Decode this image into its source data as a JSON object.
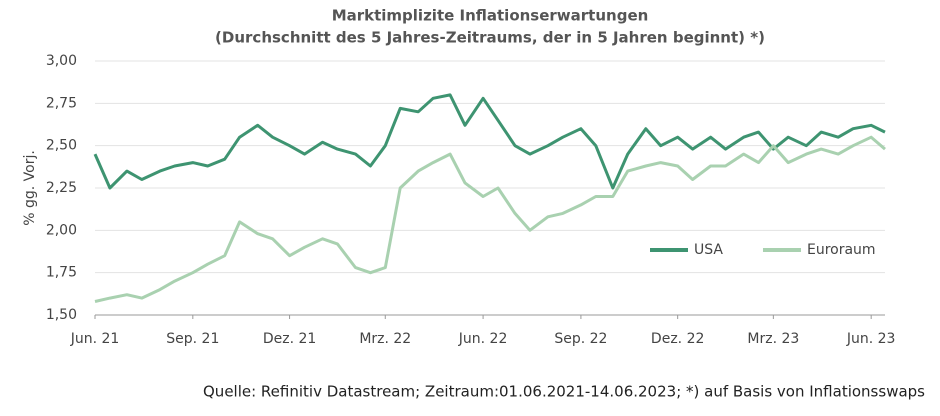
{
  "chart_data": {
    "type": "line",
    "title": "Marktimplizite Inflationserwartungen",
    "subtitle": "(Durchschnitt des 5 Jahres-Zeitraums, der in 5 Jahren beginnt) *)",
    "y_label": "% gg. Vorj.",
    "source": "Quelle: Refinitiv Datastream; Zeitraum:01.06.2021-14.06.2023; *) auf Basis von Inflationsswaps",
    "x": [
      "2021-06-01",
      "2021-06-15",
      "2021-07-01",
      "2021-07-15",
      "2021-08-01",
      "2021-08-15",
      "2021-09-01",
      "2021-09-15",
      "2021-10-01",
      "2021-10-15",
      "2021-11-01",
      "2021-11-15",
      "2021-12-01",
      "2021-12-15",
      "2022-01-01",
      "2022-01-15",
      "2022-02-01",
      "2022-02-15",
      "2022-03-01",
      "2022-03-15",
      "2022-04-01",
      "2022-04-15",
      "2022-05-01",
      "2022-05-15",
      "2022-06-01",
      "2022-06-15",
      "2022-07-01",
      "2022-07-15",
      "2022-08-01",
      "2022-08-15",
      "2022-09-01",
      "2022-09-15",
      "2022-10-01",
      "2022-10-15",
      "2022-11-01",
      "2022-11-15",
      "2022-12-01",
      "2022-12-15",
      "2023-01-01",
      "2023-01-15",
      "2023-02-01",
      "2023-02-15",
      "2023-03-01",
      "2023-03-15",
      "2023-04-01",
      "2023-04-15",
      "2023-05-01",
      "2023-05-15",
      "2023-06-01",
      "2023-06-14"
    ],
    "series": [
      {
        "name": "USA",
        "color": "#3e9471",
        "values": [
          2.45,
          2.25,
          2.35,
          2.3,
          2.35,
          2.38,
          2.4,
          2.38,
          2.42,
          2.55,
          2.62,
          2.55,
          2.5,
          2.45,
          2.52,
          2.48,
          2.45,
          2.38,
          2.5,
          2.72,
          2.7,
          2.78,
          2.8,
          2.62,
          2.78,
          2.65,
          2.5,
          2.45,
          2.5,
          2.55,
          2.6,
          2.5,
          2.25,
          2.45,
          2.6,
          2.5,
          2.55,
          2.48,
          2.55,
          2.48,
          2.55,
          2.58,
          2.48,
          2.55,
          2.5,
          2.58,
          2.55,
          2.6,
          2.62,
          2.58
        ]
      },
      {
        "name": "Euroraum",
        "color": "#a9d1b0",
        "values": [
          1.58,
          1.6,
          1.62,
          1.6,
          1.65,
          1.7,
          1.75,
          1.8,
          1.85,
          2.05,
          1.98,
          1.95,
          1.85,
          1.9,
          1.95,
          1.92,
          1.78,
          1.75,
          1.78,
          2.25,
          2.35,
          2.4,
          2.45,
          2.28,
          2.2,
          2.25,
          2.1,
          2.0,
          2.08,
          2.1,
          2.15,
          2.2,
          2.2,
          2.35,
          2.38,
          2.4,
          2.38,
          2.3,
          2.38,
          2.38,
          2.45,
          2.4,
          2.5,
          2.4,
          2.45,
          2.48,
          2.45,
          2.5,
          2.55,
          2.48
        ]
      }
    ],
    "xlim": [
      "2021-06-01",
      "2023-06-14"
    ],
    "xticks": [
      {
        "value": "2021-06-01",
        "label": "Jun. 21"
      },
      {
        "value": "2021-09-01",
        "label": "Sep. 21"
      },
      {
        "value": "2021-12-01",
        "label": "Dez. 21"
      },
      {
        "value": "2022-03-01",
        "label": "Mrz. 22"
      },
      {
        "value": "2022-06-01",
        "label": "Jun. 22"
      },
      {
        "value": "2022-09-01",
        "label": "Sep. 22"
      },
      {
        "value": "2022-12-01",
        "label": "Dez. 22"
      },
      {
        "value": "2023-03-01",
        "label": "Mrz. 23"
      },
      {
        "value": "2023-06-01",
        "label": "Jun. 23"
      }
    ],
    "ylim": [
      1.5,
      3.0
    ],
    "yticks": [
      {
        "value": 1.5,
        "label": "1,50"
      },
      {
        "value": 1.75,
        "label": "1,75"
      },
      {
        "value": 2,
        "label": "2,00"
      },
      {
        "value": 2.25,
        "label": "2,25"
      },
      {
        "value": 2.5,
        "label": "2,50"
      },
      {
        "value": 2.75,
        "label": "2,75"
      },
      {
        "value": 3,
        "label": "3,00"
      }
    ],
    "grid": true,
    "legend": "lower-right"
  }
}
